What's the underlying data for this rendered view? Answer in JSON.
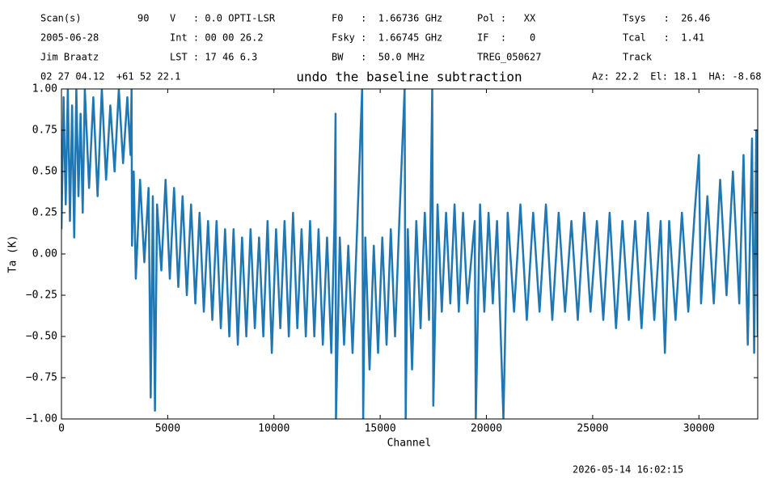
{
  "chart_data": {
    "type": "line",
    "title": "undo the baseline subtraction",
    "info": [
      [
        "Scan(s)",
        "90",
        "V   : 0.0 OPTI-LSR",
        "F0   :  1.66736 GHz",
        "Pol :   XX",
        "Tsys   :  26.46"
      ],
      [
        "2005-06-28",
        "Int : 00 00 26.2",
        "Fsky :  1.66745 GHz",
        "IF  :    0",
        "Tcal   :  1.41"
      ],
      [
        "Jim Braatz",
        "LST : 17 46 6.3",
        "BW   :  50.0 MHz",
        "TREG_050627",
        "Track"
      ],
      [
        "02 27 04.12  +61 52 22.1",
        "Az: 22.2  El: 18.1  HA: -8.68"
      ]
    ],
    "xlabel": "Channel",
    "ylabel": "Ta (K)",
    "timestamp": "2026-05-14 16:02:15",
    "xlim": [
      0,
      32768
    ],
    "ylim": [
      -1,
      1
    ],
    "xticks": [
      0,
      5000,
      10000,
      15000,
      20000,
      25000,
      30000
    ],
    "yticks": [
      {
        "value": -1,
        "label": "−1.00"
      },
      {
        "value": -0.75,
        "label": "−0.75"
      },
      {
        "value": -0.5,
        "label": "−0.50"
      },
      {
        "value": -0.25,
        "label": "−0.25"
      },
      {
        "value": 0,
        "label": "0.00"
      },
      {
        "value": 0.25,
        "label": "0.25"
      },
      {
        "value": 0.5,
        "label": "0.50"
      },
      {
        "value": 0.75,
        "label": "0.75"
      },
      {
        "value": 1,
        "label": "1.00"
      }
    ],
    "series": [
      {
        "color": "#1f77b4",
        "x": [
          0,
          100,
          200,
          300,
          400,
          500,
          600,
          700,
          800,
          900,
          1000,
          1100,
          1300,
          1500,
          1700,
          1900,
          2100,
          2300,
          2500,
          2700,
          2900,
          3100,
          3250,
          3300,
          3320,
          3400,
          3500,
          3700,
          3900,
          4100,
          4200,
          4300,
          4400,
          4500,
          4700,
          4900,
          5100,
          5300,
          5500,
          5700,
          5900,
          6100,
          6300,
          6500,
          6700,
          6900,
          7100,
          7300,
          7500,
          7700,
          7900,
          8100,
          8300,
          8500,
          8700,
          8900,
          9100,
          9300,
          9500,
          9700,
          9900,
          10100,
          10300,
          10500,
          10700,
          10900,
          11100,
          11300,
          11500,
          11700,
          11900,
          12100,
          12300,
          12500,
          12700,
          12850,
          12900,
          12920,
          13100,
          13300,
          13500,
          13700,
          13900,
          14150,
          14200,
          14300,
          14500,
          14700,
          14900,
          15100,
          15300,
          15500,
          15700,
          15900,
          16150,
          16200,
          16300,
          16500,
          16700,
          16900,
          17100,
          17300,
          17450,
          17500,
          17700,
          17900,
          18100,
          18300,
          18500,
          18700,
          18900,
          19100,
          19450,
          19500,
          19700,
          19900,
          20100,
          20300,
          20500,
          20800,
          21000,
          21300,
          21600,
          21900,
          22200,
          22500,
          22800,
          23100,
          23400,
          23700,
          24000,
          24300,
          24600,
          24900,
          25200,
          25500,
          25800,
          26100,
          26400,
          26700,
          27000,
          27300,
          27600,
          27900,
          28200,
          28400,
          28600,
          28900,
          29200,
          29500,
          29800,
          30000,
          30100,
          30400,
          30700,
          31000,
          31300,
          31600,
          31900,
          32100,
          32300,
          32500,
          32600,
          32700,
          32768
        ],
        "values": [
          0.15,
          0.95,
          0.3,
          1.0,
          0.2,
          0.9,
          0.1,
          1.0,
          0.35,
          0.85,
          0.25,
          1.0,
          0.4,
          0.95,
          0.35,
          1.0,
          0.45,
          0.9,
          0.5,
          1.0,
          0.55,
          0.95,
          0.6,
          1.0,
          0.05,
          0.5,
          -0.15,
          0.45,
          -0.05,
          0.4,
          -0.87,
          0.35,
          -0.95,
          0.3,
          -0.1,
          0.45,
          -0.15,
          0.4,
          -0.2,
          0.35,
          -0.25,
          0.3,
          -0.3,
          0.25,
          -0.35,
          0.2,
          -0.4,
          0.2,
          -0.45,
          0.15,
          -0.5,
          0.15,
          -0.55,
          0.1,
          -0.5,
          0.15,
          -0.45,
          0.1,
          -0.5,
          0.2,
          -0.6,
          0.15,
          -0.45,
          0.2,
          -0.5,
          0.25,
          -0.45,
          0.15,
          -0.5,
          0.2,
          -0.5,
          0.15,
          -0.55,
          0.1,
          -0.6,
          0.2,
          0.85,
          -1.0,
          0.1,
          -0.55,
          0.05,
          -0.6,
          0.1,
          1.0,
          -1.0,
          0.1,
          -0.7,
          0.05,
          -0.6,
          0.1,
          -0.55,
          0.15,
          -0.5,
          0.2,
          1.0,
          -1.0,
          0.15,
          -0.7,
          0.2,
          -0.45,
          0.25,
          -0.4,
          1.0,
          -0.92,
          0.3,
          -0.35,
          0.25,
          -0.3,
          0.3,
          -0.35,
          0.25,
          -0.3,
          0.2,
          -1.0,
          0.3,
          -0.35,
          0.25,
          -0.3,
          0.2,
          -1.0,
          0.25,
          -0.35,
          0.3,
          -0.4,
          0.25,
          -0.35,
          0.3,
          -0.4,
          0.25,
          -0.35,
          0.2,
          -0.4,
          0.25,
          -0.35,
          0.2,
          -0.4,
          0.25,
          -0.45,
          0.2,
          -0.4,
          0.2,
          -0.45,
          0.25,
          -0.4,
          0.2,
          -0.6,
          0.2,
          -0.4,
          0.25,
          -0.35,
          0.25,
          0.6,
          -0.3,
          0.35,
          -0.3,
          0.45,
          -0.25,
          0.5,
          -0.3,
          0.6,
          -0.55,
          0.7,
          -0.6,
          0.75,
          -0.5
        ]
      }
    ]
  }
}
